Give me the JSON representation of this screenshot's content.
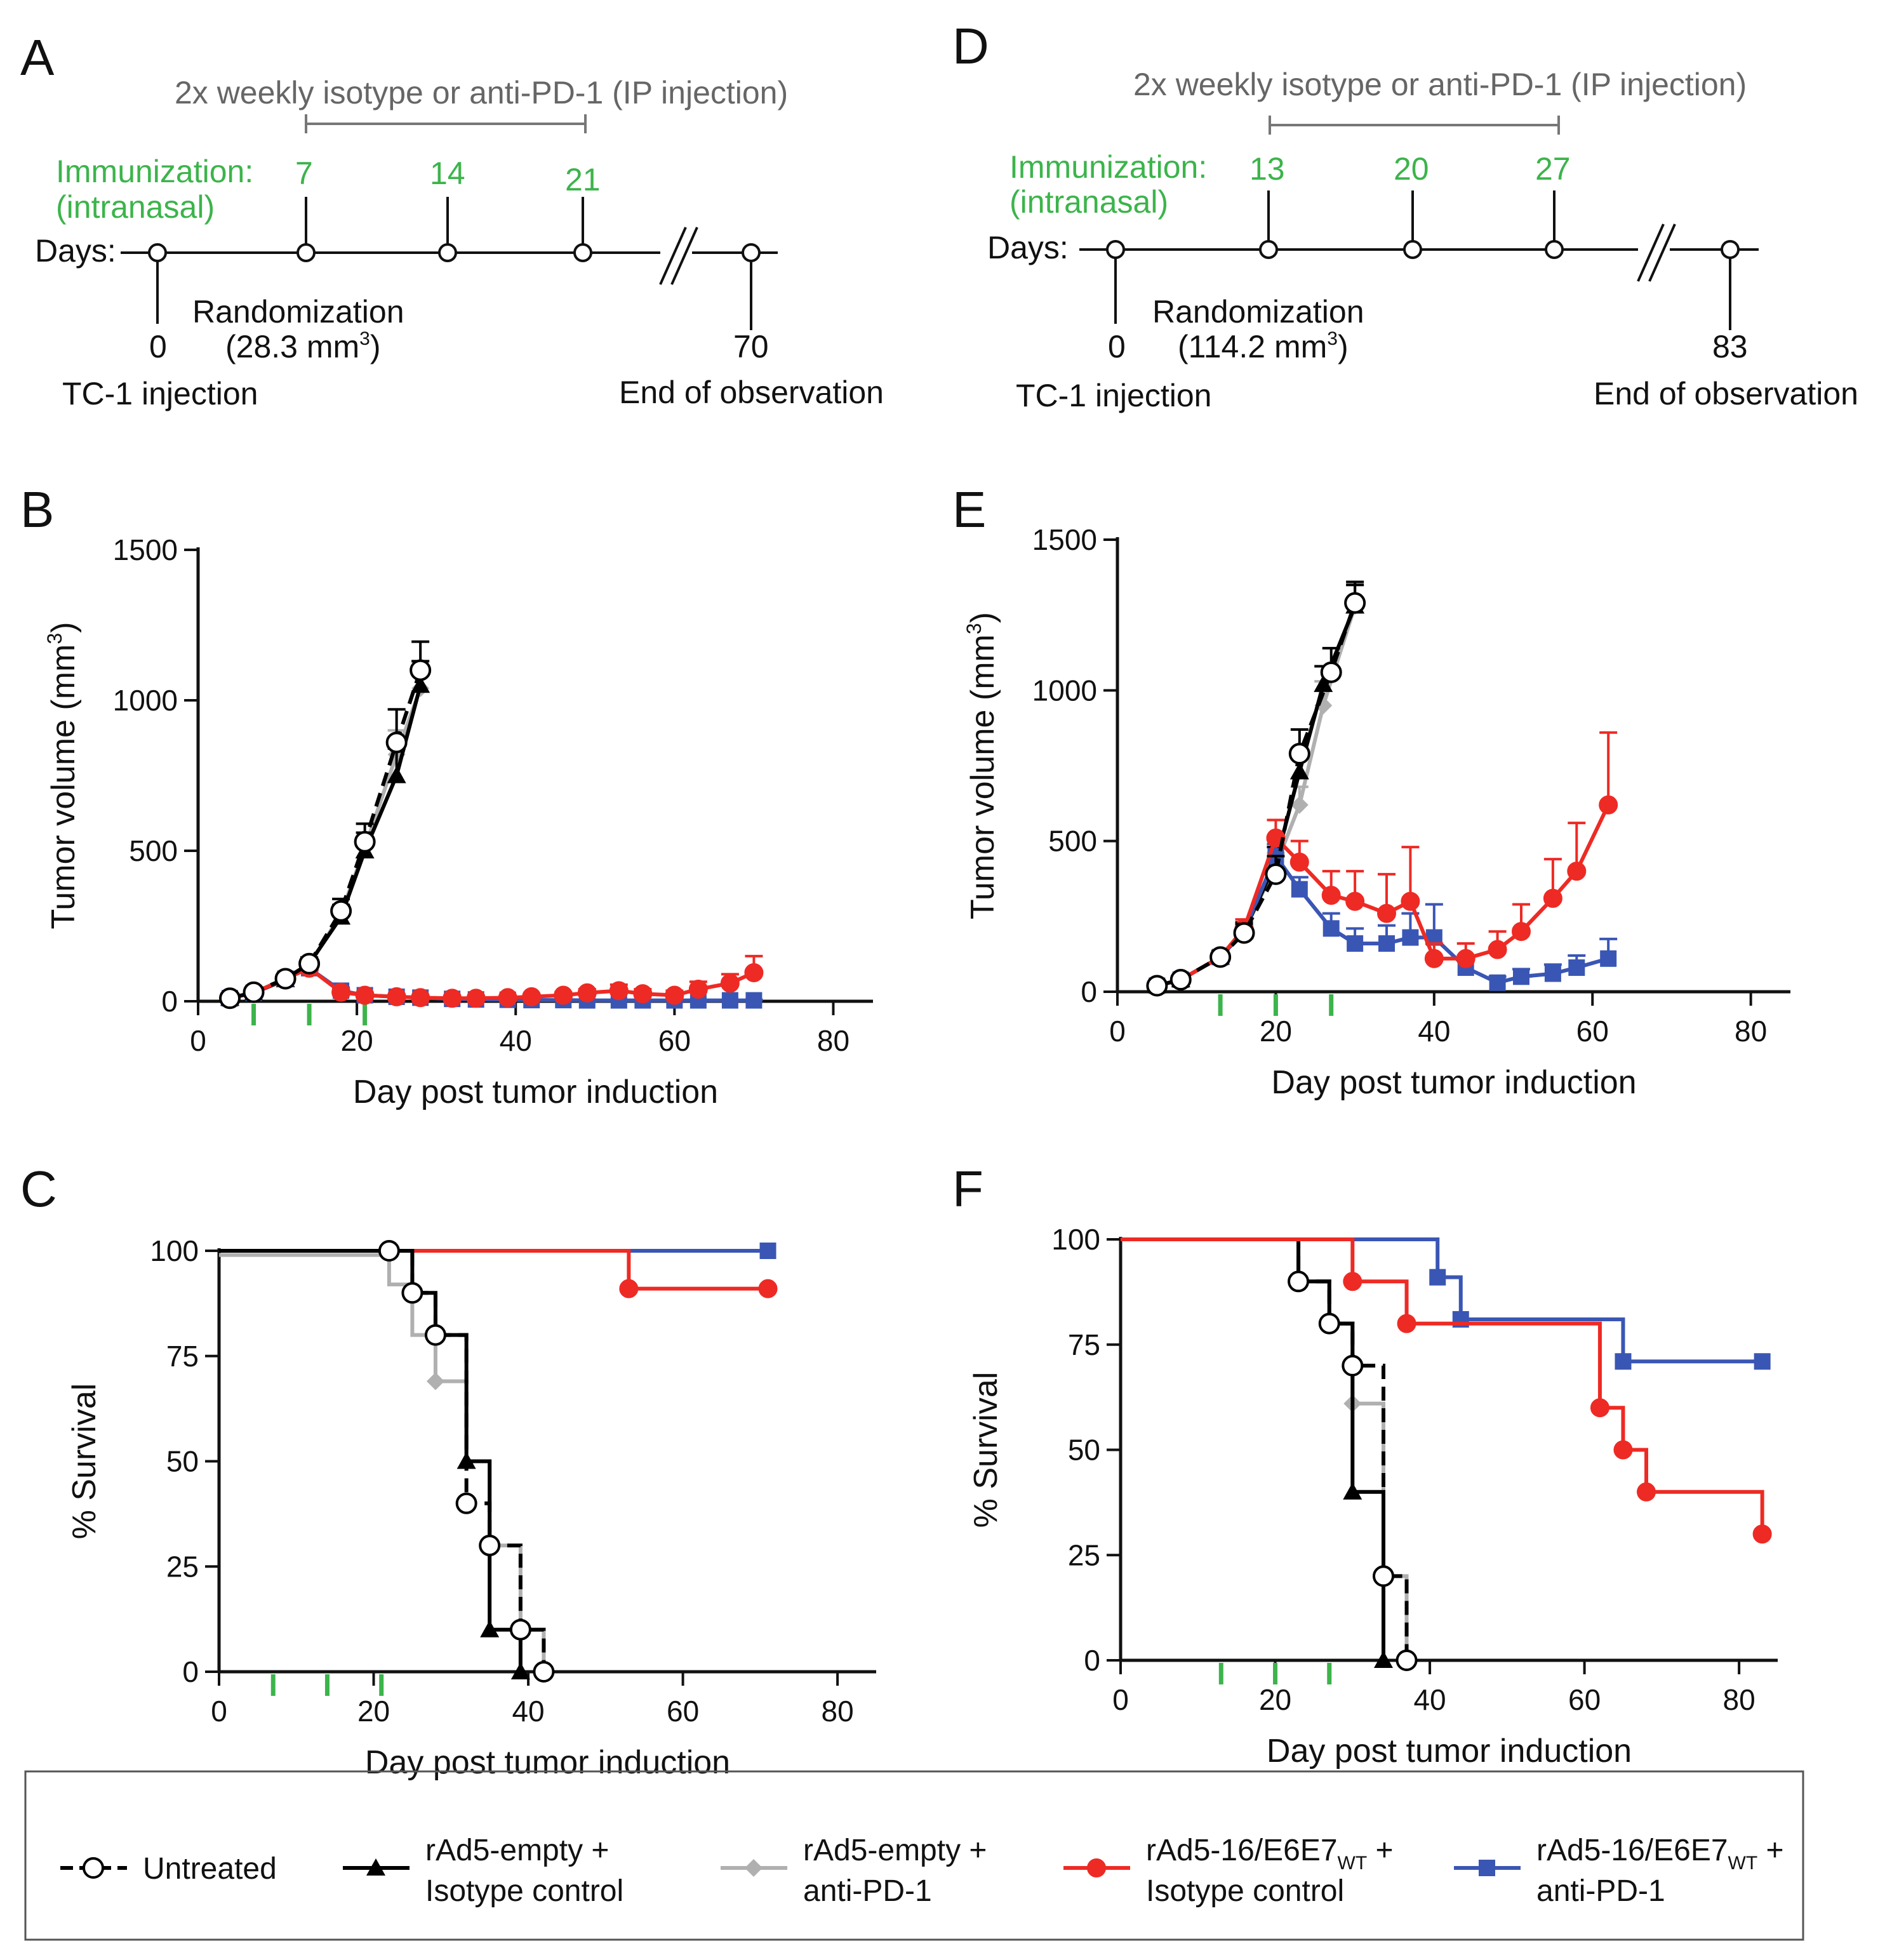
{
  "panel_labels": {
    "A": "A",
    "B": "B",
    "C": "C",
    "D": "D",
    "E": "E",
    "F": "F"
  },
  "timelines": [
    {
      "id": "A",
      "treatment_label": "2x weekly isotype or anti-PD-1 (IP injection)",
      "immunization_label_1": "Immunization:",
      "immunization_label_2": "(intranasal)",
      "days_label": "Days:",
      "immunization_days": [
        "7",
        "14",
        "21"
      ],
      "start_day": "0",
      "start_label": "TC-1 injection",
      "randomization_label_1": "Randomization",
      "randomization_label_2": "(28.3 mm",
      "randomization_sup": "3",
      "randomization_close": ")",
      "end_day": "70",
      "end_label": "End of observation"
    },
    {
      "id": "D",
      "treatment_label": "2x weekly isotype or anti-PD-1 (IP injection)",
      "immunization_label_1": "Immunization:",
      "immunization_label_2": "(intranasal)",
      "days_label": "Days:",
      "immunization_days": [
        "13",
        "20",
        "27"
      ],
      "start_day": "0",
      "start_label": "TC-1 injection",
      "randomization_label_1": "Randomization",
      "randomization_label_2": "(114.2 mm",
      "randomization_sup": "3",
      "randomization_close": ")",
      "end_day": "83",
      "end_label": "End of observation"
    }
  ],
  "colors": {
    "untreated": "#000000",
    "empty_iso": "#000000",
    "empty_pd1": "#b0b0b0",
    "e6e7_iso": "#ee2a24",
    "e6e7_pd1": "#3a56b4",
    "immunization": "#3cb44b",
    "grey_text": "#666666"
  },
  "chart_data": [
    {
      "id": "B",
      "type": "line",
      "title": "",
      "xlabel": "Day post tumor induction",
      "ylabel": "Tumor volume (mm",
      "ylabel_sup": "3",
      "ylabel_close": ")",
      "xlim": [
        0,
        85
      ],
      "ylim": [
        0,
        1500
      ],
      "xticks": [
        0,
        20,
        40,
        60,
        80
      ],
      "yticks": [
        0,
        500,
        1000,
        1500
      ],
      "immunization_days": [
        7,
        14,
        21
      ],
      "series": [
        {
          "name": "rAd5-empty + anti-PD-1",
          "key": "empty_pd1",
          "x": [
            4,
            7,
            11,
            14,
            18,
            21,
            25,
            28
          ],
          "y": [
            10,
            28,
            70,
            120,
            290,
            510,
            820,
            1040
          ],
          "err": [
            5,
            8,
            15,
            20,
            30,
            50,
            80,
            90
          ]
        },
        {
          "name": "rAd5-empty + Isotype control",
          "key": "empty_iso",
          "x": [
            4,
            7,
            11,
            14,
            18,
            21,
            25,
            28
          ],
          "y": [
            10,
            28,
            72,
            125,
            280,
            500,
            750,
            1050
          ],
          "err": [
            5,
            8,
            15,
            20,
            40,
            60,
            90,
            80
          ]
        },
        {
          "name": "rAd5-16/E6E7WT + anti-PD-1",
          "key": "e6e7_pd1",
          "x": [
            4,
            7,
            11,
            14,
            18,
            21,
            25,
            28,
            32,
            35,
            39,
            42,
            46,
            49,
            53,
            56,
            60,
            63,
            67,
            70
          ],
          "y": [
            10,
            28,
            75,
            110,
            35,
            20,
            15,
            12,
            8,
            6,
            5,
            4,
            4,
            3,
            3,
            3,
            3,
            3,
            3,
            3
          ],
          "err": [
            5,
            8,
            15,
            15,
            10,
            8,
            6,
            5,
            4,
            3,
            3,
            2,
            2,
            2,
            2,
            2,
            2,
            2,
            2,
            2
          ]
        },
        {
          "name": "rAd5-16/E6E7WT + Isotype control",
          "key": "e6e7_iso",
          "x": [
            4,
            7,
            11,
            14,
            18,
            21,
            25,
            28,
            32,
            35,
            39,
            42,
            46,
            49,
            53,
            56,
            60,
            63,
            67,
            70
          ],
          "y": [
            10,
            28,
            75,
            110,
            30,
            20,
            15,
            12,
            10,
            10,
            12,
            15,
            20,
            28,
            35,
            25,
            20,
            40,
            60,
            95
          ],
          "err": [
            5,
            8,
            15,
            15,
            10,
            8,
            6,
            5,
            5,
            5,
            6,
            8,
            10,
            12,
            20,
            15,
            15,
            25,
            30,
            55
          ]
        },
        {
          "name": "Untreated",
          "key": "untreated",
          "x": [
            4,
            7,
            11,
            14,
            18,
            21,
            25,
            28
          ],
          "y": [
            10,
            30,
            75,
            125,
            300,
            530,
            860,
            1100
          ],
          "err": [
            5,
            8,
            15,
            20,
            40,
            60,
            110,
            95
          ]
        }
      ]
    },
    {
      "id": "E",
      "type": "line",
      "title": "",
      "xlabel": "Day post tumor induction",
      "ylabel": "Tumor volume (mm",
      "ylabel_sup": "3",
      "ylabel_close": ")",
      "xlim": [
        0,
        85
      ],
      "ylim": [
        0,
        1500
      ],
      "xticks": [
        0,
        20,
        40,
        60,
        80
      ],
      "yticks": [
        0,
        500,
        1000,
        1500
      ],
      "immunization_days": [
        13,
        20,
        27
      ],
      "series": [
        {
          "name": "rAd5-empty + anti-PD-1",
          "key": "empty_pd1",
          "x": [
            5,
            8,
            13,
            16,
            20,
            23,
            26,
            30
          ],
          "y": [
            20,
            40,
            115,
            200,
            420,
            620,
            950,
            1280
          ],
          "err": [
            8,
            10,
            20,
            30,
            40,
            60,
            80,
            70
          ]
        },
        {
          "name": "rAd5-empty + Isotype control",
          "key": "empty_iso",
          "x": [
            5,
            8,
            13,
            16,
            20,
            23,
            26,
            30
          ],
          "y": [
            20,
            40,
            115,
            200,
            430,
            730,
            1020,
            1280
          ],
          "err": [
            8,
            10,
            20,
            30,
            50,
            70,
            60,
            70
          ]
        },
        {
          "name": "rAd5-16/E6E7WT + anti-PD-1",
          "key": "e6e7_pd1",
          "x": [
            5,
            8,
            13,
            16,
            20,
            23,
            27,
            30,
            34,
            37,
            40,
            44,
            48,
            51,
            55,
            58,
            62
          ],
          "y": [
            20,
            40,
            115,
            200,
            450,
            340,
            210,
            160,
            160,
            180,
            180,
            80,
            30,
            50,
            60,
            80,
            110
          ],
          "err": [
            8,
            10,
            20,
            25,
            40,
            40,
            50,
            50,
            60,
            80,
            110,
            40,
            20,
            25,
            30,
            40,
            65
          ]
        },
        {
          "name": "rAd5-16/E6E7WT + Isotype control",
          "key": "e6e7_iso",
          "x": [
            5,
            8,
            13,
            16,
            20,
            23,
            27,
            30,
            34,
            37,
            40,
            44,
            48,
            51,
            55,
            58,
            62
          ],
          "y": [
            20,
            40,
            115,
            210,
            510,
            430,
            320,
            300,
            260,
            300,
            110,
            110,
            140,
            200,
            310,
            400,
            620
          ],
          "err": [
            8,
            10,
            20,
            30,
            60,
            70,
            80,
            100,
            130,
            180,
            50,
            50,
            60,
            90,
            130,
            160,
            240
          ]
        },
        {
          "name": "Untreated",
          "key": "untreated",
          "x": [
            5,
            8,
            13,
            16,
            20,
            23,
            27,
            30
          ],
          "y": [
            20,
            40,
            115,
            195,
            390,
            790,
            1060,
            1290
          ],
          "err": [
            8,
            10,
            20,
            30,
            60,
            80,
            80,
            70
          ]
        }
      ]
    },
    {
      "id": "C",
      "type": "line",
      "title": "",
      "xlabel": "Day post tumor induction",
      "ylabel": "% Survival",
      "xlim": [
        0,
        85
      ],
      "ylim": [
        0,
        100
      ],
      "xticks": [
        0,
        20,
        40,
        60,
        80
      ],
      "yticks": [
        0,
        25,
        50,
        75,
        100
      ],
      "immunization_days": [
        7,
        14,
        21
      ],
      "series": [
        {
          "name": "rAd5-16/E6E7WT + anti-PD-1",
          "key": "e6e7_pd1",
          "x": [
            0,
            71
          ],
          "y": [
            100,
            100
          ],
          "marks": [
            [
              71,
              100
            ]
          ]
        },
        {
          "name": "rAd5-16/E6E7WT + Isotype control",
          "key": "e6e7_iso",
          "x": [
            0,
            53,
            71
          ],
          "y": [
            100,
            91,
            91
          ],
          "marks": [
            [
              22,
              100
            ],
            [
              53,
              91
            ],
            [
              71,
              91
            ]
          ]
        },
        {
          "name": "rAd5-empty + anti-PD-1",
          "key": "empty_pd1",
          "x": [
            0,
            22,
            25,
            28,
            32,
            35,
            39,
            42
          ],
          "y": [
            99,
            92,
            80,
            69,
            50,
            30,
            10,
            0
          ],
          "marks": [
            [
              28,
              69
            ]
          ]
        },
        {
          "name": "rAd5-empty + Isotype control",
          "key": "empty_iso",
          "x": [
            0,
            25,
            28,
            32,
            35,
            39
          ],
          "y": [
            100,
            90,
            80,
            50,
            10,
            0
          ],
          "marks": [
            [
              32,
              50
            ],
            [
              35,
              10
            ],
            [
              39,
              0
            ]
          ]
        },
        {
          "name": "Untreated",
          "key": "untreated",
          "x": [
            0,
            22,
            25,
            28,
            32,
            35,
            39,
            42
          ],
          "y": [
            100,
            100,
            90,
            80,
            40,
            30,
            10,
            0
          ],
          "marks": [
            [
              22,
              100
            ],
            [
              25,
              90
            ],
            [
              28,
              80
            ],
            [
              32,
              40
            ],
            [
              35,
              30
            ],
            [
              39,
              10
            ],
            [
              42,
              0
            ]
          ]
        }
      ]
    },
    {
      "id": "F",
      "type": "line",
      "title": "",
      "xlabel": "Day post tumor induction",
      "ylabel": "% Survival",
      "xlim": [
        0,
        85
      ],
      "ylim": [
        0,
        100
      ],
      "xticks": [
        0,
        20,
        40,
        60,
        80
      ],
      "yticks": [
        0,
        25,
        50,
        75,
        100
      ],
      "immunization_days": [
        13,
        20,
        27
      ],
      "series": [
        {
          "name": "rAd5-empty + anti-PD-1",
          "key": "empty_pd1",
          "x": [
            0,
            23,
            27,
            30,
            34,
            37
          ],
          "y": [
            100,
            90,
            80,
            61,
            20,
            0
          ],
          "marks": [
            [
              30,
              61
            ]
          ]
        },
        {
          "name": "rAd5-empty + Isotype control",
          "key": "empty_iso",
          "x": [
            0,
            23,
            27,
            30,
            34
          ],
          "y": [
            100,
            90,
            80,
            40,
            0
          ],
          "marks": [
            [
              30,
              40
            ],
            [
              34,
              0
            ]
          ]
        },
        {
          "name": "Untreated",
          "key": "untreated",
          "x": [
            0,
            23,
            27,
            30,
            34,
            37
          ],
          "y": [
            100,
            90,
            80,
            70,
            20,
            0
          ],
          "marks": [
            [
              23,
              90
            ],
            [
              27,
              80
            ],
            [
              30,
              70
            ],
            [
              34,
              20
            ],
            [
              37,
              0
            ]
          ]
        },
        {
          "name": "rAd5-16/E6E7WT + anti-PD-1",
          "key": "e6e7_pd1",
          "x": [
            0,
            41,
            44,
            65,
            83
          ],
          "y": [
            100,
            91,
            81,
            71,
            71
          ],
          "marks": [
            [
              41,
              91
            ],
            [
              44,
              81
            ],
            [
              65,
              71
            ],
            [
              83,
              71
            ]
          ]
        },
        {
          "name": "rAd5-16/E6E7WT + Isotype control",
          "key": "e6e7_iso",
          "x": [
            0,
            30,
            37,
            62,
            65,
            68,
            83
          ],
          "y": [
            100,
            90,
            80,
            60,
            50,
            40,
            30
          ],
          "marks": [
            [
              30,
              90
            ],
            [
              37,
              80
            ],
            [
              62,
              60
            ],
            [
              65,
              50
            ],
            [
              68,
              40
            ],
            [
              83,
              30
            ]
          ]
        }
      ]
    }
  ],
  "legend": [
    {
      "key": "untreated",
      "marker": "circle",
      "dashed": true,
      "line1": "Untreated",
      "line2": "",
      "sub": ""
    },
    {
      "key": "empty_iso",
      "marker": "triangle",
      "dashed": false,
      "line1": "rAd5-empty +",
      "line2": "Isotype control",
      "sub": ""
    },
    {
      "key": "empty_pd1",
      "marker": "diamond",
      "dashed": false,
      "line1": "rAd5-empty +",
      "line2": "anti-PD-1",
      "sub": ""
    },
    {
      "key": "e6e7_iso",
      "marker": "circle-filled",
      "dashed": false,
      "line1": "rAd5-16/E6E7",
      "line1_end": " +",
      "line2": "Isotype control",
      "sub": "WT"
    },
    {
      "key": "e6e7_pd1",
      "marker": "square",
      "dashed": false,
      "line1": "rAd5-16/E6E7",
      "line1_end": " +",
      "line2": "anti-PD-1",
      "sub": "WT"
    }
  ]
}
